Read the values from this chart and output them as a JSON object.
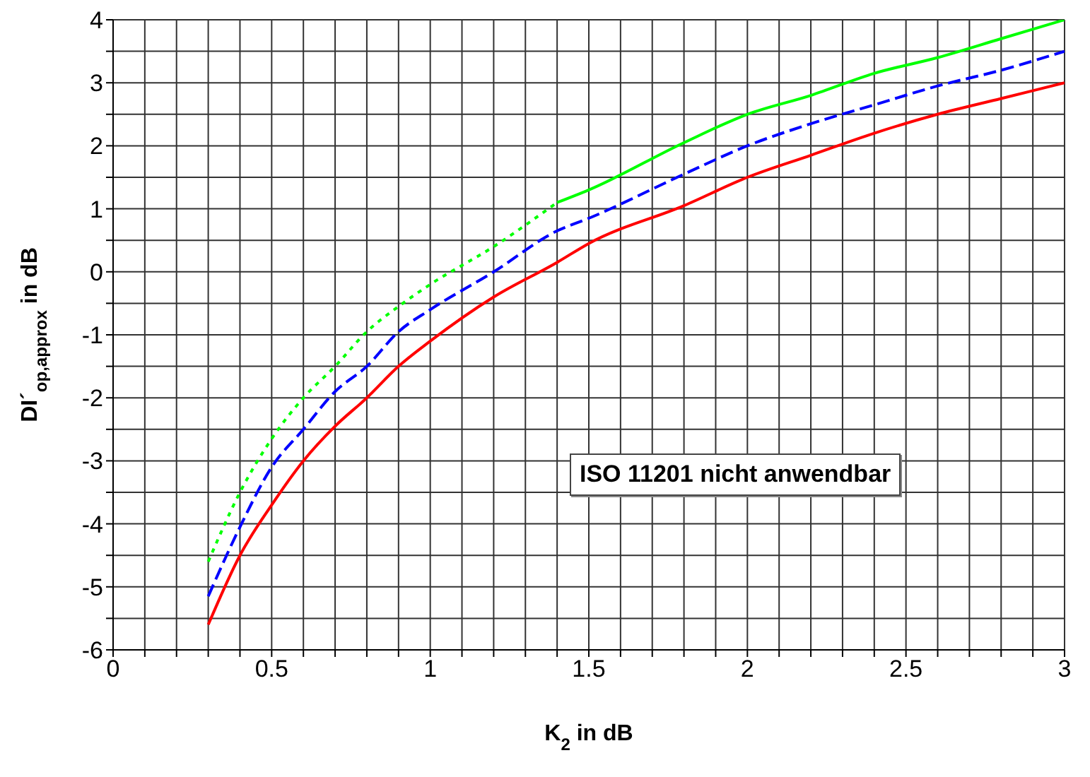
{
  "chart_data": {
    "type": "line",
    "xlabel": "K$_{2}$ in dB",
    "ylabel": "DI´$_{op,approx}$ in dB",
    "xlim": [
      0,
      3
    ],
    "ylim": [
      -6,
      4
    ],
    "xticks": [
      0,
      {
        "value": 0.1,
        "label": null
      },
      {
        "value": 0.2,
        "label": null
      },
      {
        "value": 0.3,
        "label": null
      },
      {
        "value": 0.4,
        "label": null
      },
      0.5,
      {
        "value": 0.6,
        "label": null
      },
      {
        "value": 0.7,
        "label": null
      },
      {
        "value": 0.8,
        "label": null
      },
      {
        "value": 0.9,
        "label": null
      },
      1,
      {
        "value": 1.1,
        "label": null
      },
      {
        "value": 1.2,
        "label": null
      },
      {
        "value": 1.3,
        "label": null
      },
      {
        "value": 1.4,
        "label": null
      },
      1.5,
      {
        "value": 1.6,
        "label": null
      },
      {
        "value": 1.7,
        "label": null
      },
      {
        "value": 1.8,
        "label": null
      },
      {
        "value": 1.9,
        "label": null
      },
      2,
      {
        "value": 2.1,
        "label": null
      },
      {
        "value": 2.2,
        "label": null
      },
      {
        "value": 2.3,
        "label": null
      },
      {
        "value": 2.4,
        "label": null
      },
      2.5,
      {
        "value": 2.6,
        "label": null
      },
      {
        "value": 2.7,
        "label": null
      },
      {
        "value": 2.8,
        "label": null
      },
      {
        "value": 2.9,
        "label": null
      },
      3
    ],
    "yticks": [
      -6,
      {
        "value": -5.5,
        "label": null
      },
      -5,
      {
        "value": -4.5,
        "label": null
      },
      -4,
      {
        "value": -3.5,
        "label": null
      },
      -3,
      {
        "value": -2.5,
        "label": null
      },
      -2,
      {
        "value": -1.5,
        "label": null
      },
      -1,
      {
        "value": -0.5,
        "label": null
      },
      0,
      {
        "value": 0.5,
        "label": null
      },
      1,
      {
        "value": 1.5,
        "label": null
      },
      2,
      {
        "value": 2.5,
        "label": null
      },
      3,
      {
        "value": 3.5,
        "label": null
      },
      4
    ],
    "grid": true,
    "marker": "none",
    "annotations": [
      "ISO 11201 nicht anwendbar"
    ],
    "series": [
      {
        "color": "#00ff00",
        "line_style": "dotted",
        "x": [
          0.3,
          0.4,
          0.5,
          0.6,
          0.7,
          0.8,
          0.9,
          1.0,
          1.2,
          1.4
        ],
        "values": [
          -4.6,
          -3.5,
          -2.65,
          -2.0,
          -1.5,
          -0.95,
          -0.55,
          -0.2,
          0.4,
          1.1
        ]
      },
      {
        "color": "#00ff00",
        "line_style": "solid",
        "x": [
          1.4,
          1.5,
          1.8,
          2.0,
          2.2,
          2.4,
          2.6,
          2.8,
          3.0
        ],
        "values": [
          1.1,
          1.3,
          2.05,
          2.5,
          2.8,
          3.15,
          3.4,
          3.7,
          4.0
        ]
      },
      {
        "color": "#0000ff",
        "line_style": "dashed",
        "x": [
          0.3,
          0.4,
          0.5,
          0.6,
          0.7,
          0.8,
          0.9,
          1.0,
          1.2,
          1.4,
          1.5,
          1.8,
          2.0,
          2.2,
          2.4,
          2.6,
          2.8,
          3.0
        ],
        "values": [
          -5.15,
          -4.05,
          -3.1,
          -2.5,
          -1.9,
          -1.5,
          -0.95,
          -0.6,
          0.0,
          0.65,
          0.85,
          1.55,
          2.0,
          2.35,
          2.65,
          2.95,
          3.2,
          3.5
        ]
      },
      {
        "color": "#ff0000",
        "line_style": "solid",
        "x": [
          0.3,
          0.4,
          0.5,
          0.6,
          0.7,
          0.8,
          0.9,
          1.0,
          1.2,
          1.4,
          1.5,
          1.8,
          2.0,
          2.2,
          2.4,
          2.6,
          2.8,
          3.0
        ],
        "values": [
          -5.6,
          -4.5,
          -3.7,
          -3.0,
          -2.45,
          -2.0,
          -1.5,
          -1.1,
          -0.4,
          0.15,
          0.45,
          1.05,
          1.5,
          1.85,
          2.2,
          2.5,
          2.75,
          3.0
        ]
      }
    ]
  }
}
